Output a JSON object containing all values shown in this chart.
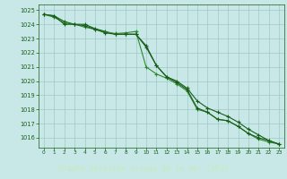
{
  "title": "Graphe pression niveau de la mer (hPa)",
  "background_color": "#c0e0e0",
  "plot_bg_color": "#c8e8e8",
  "grid_color": "#a0c8c8",
  "line_color_dark": "#1a5c1a",
  "line_color_mid": "#2d8b2d",
  "title_bg": "#2d6b2d",
  "title_fg": "#c8e8c8",
  "xlim": [
    -0.5,
    23.5
  ],
  "ylim": [
    1015.3,
    1025.4
  ],
  "yticks": [
    1016,
    1017,
    1018,
    1019,
    1020,
    1021,
    1022,
    1023,
    1024,
    1025
  ],
  "xticks": [
    0,
    1,
    2,
    3,
    4,
    5,
    6,
    7,
    8,
    9,
    10,
    11,
    12,
    13,
    14,
    15,
    16,
    17,
    18,
    19,
    20,
    21,
    22,
    23
  ],
  "series1": [
    1024.7,
    1024.6,
    1024.2,
    1024.0,
    1024.0,
    1023.7,
    1023.5,
    1023.3,
    1023.3,
    1023.3,
    1022.4,
    1021.1,
    1020.3,
    1020.0,
    1019.5,
    1018.6,
    1018.1,
    1017.8,
    1017.5,
    1017.1,
    1016.6,
    1016.2,
    1015.8,
    1015.55
  ],
  "series2": [
    1024.7,
    1024.5,
    1024.1,
    1024.0,
    1023.8,
    1023.65,
    1023.45,
    1023.35,
    1023.4,
    1023.5,
    1021.0,
    1020.5,
    1020.2,
    1019.8,
    1019.3,
    1018.0,
    1017.8,
    1017.3,
    1017.2,
    1016.8,
    1016.3,
    1015.9,
    1015.7,
    1015.55
  ],
  "series3": [
    1024.7,
    1024.6,
    1024.0,
    1024.0,
    1023.9,
    1023.65,
    1023.4,
    1023.3,
    1023.3,
    1023.3,
    1022.5,
    1021.1,
    1020.3,
    1019.9,
    1019.4,
    1018.1,
    1017.8,
    1017.3,
    1017.2,
    1016.8,
    1016.3,
    1016.0,
    1015.8,
    1015.55
  ]
}
